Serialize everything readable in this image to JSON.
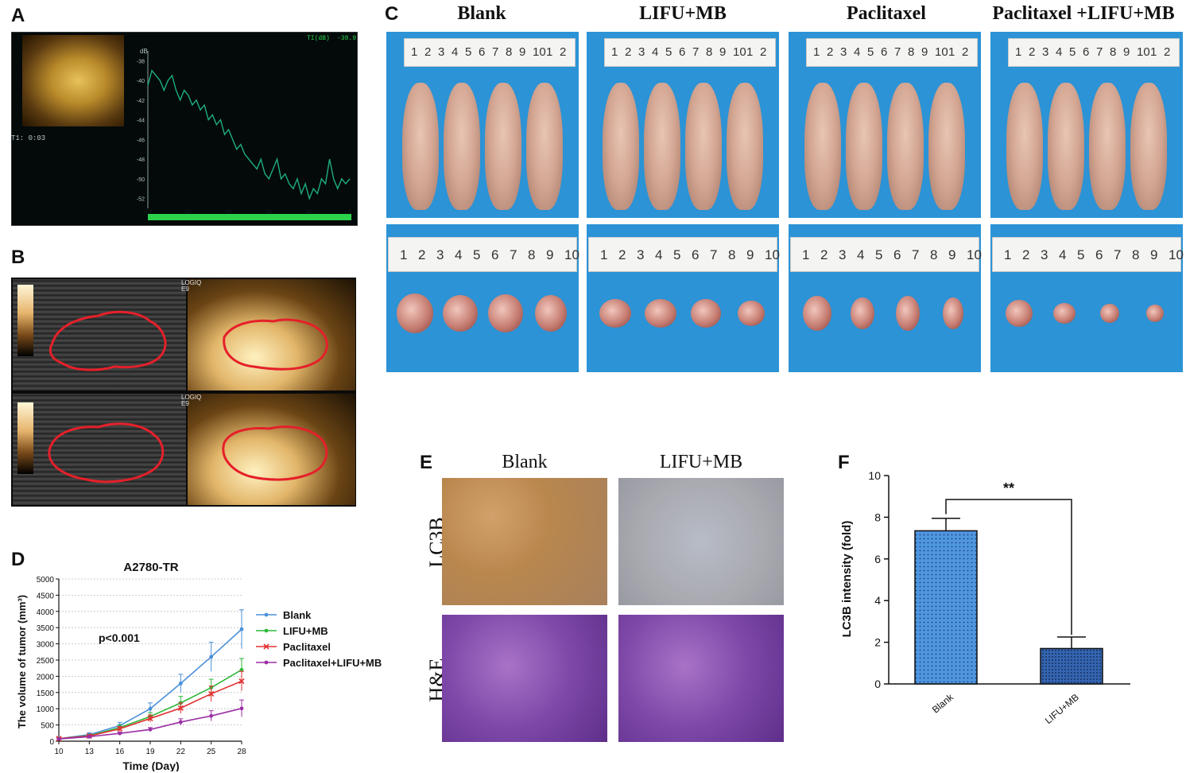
{
  "panel_letters": {
    "a": "A",
    "b": "B",
    "c": "C",
    "d": "D",
    "e": "E",
    "f": "F"
  },
  "panelA": {
    "top_right_label": "TI(dB)",
    "top_right_value": "-38.9",
    "y_unit": "dB",
    "t1_label": "T1: 0:03",
    "chart_data": {
      "type": "line",
      "x_range": [
        0,
        100
      ],
      "x_ticks": [
        "0.0",
        "20",
        "40",
        "60",
        "80",
        "1"
      ],
      "y_range": [
        -53,
        -37
      ],
      "y_ticks": [
        "-38",
        "-40",
        "-42",
        "-44",
        "-46",
        "-48",
        "-50",
        "-52"
      ],
      "series": [
        {
          "color": "#1fae7e",
          "x": [
            0,
            2,
            4,
            6,
            8,
            10,
            12,
            14,
            16,
            18,
            20,
            22,
            24,
            26,
            28,
            30,
            32,
            34,
            36,
            38,
            40,
            42,
            44,
            46,
            48,
            50,
            52,
            54,
            56,
            58,
            60,
            62,
            64,
            66,
            68,
            70,
            72,
            74,
            76,
            78,
            80,
            82,
            84,
            86,
            88,
            90,
            92,
            94,
            96,
            98,
            100
          ],
          "y": [
            -40.5,
            -39,
            -39.5,
            -40,
            -41,
            -40,
            -39.5,
            -41,
            -42,
            -41,
            -41.5,
            -42.5,
            -42,
            -43,
            -42.5,
            -44,
            -43.5,
            -44.5,
            -44,
            -45.5,
            -45,
            -46,
            -47,
            -46.5,
            -47.5,
            -48,
            -48.5,
            -49,
            -48,
            -49.5,
            -50,
            -49,
            -48,
            -50,
            -49.5,
            -50.5,
            -51,
            -50,
            -51.5,
            -50.5,
            -52,
            -51,
            -51.5,
            -50,
            -50.5,
            -48,
            -50,
            -51,
            -50,
            -50.5,
            -50
          ]
        }
      ]
    }
  },
  "panelB": {
    "logiq_label_1": "LOGIQ",
    "logiq_label_2": "E9",
    "outline_color": "#e5202a"
  },
  "panelC": {
    "groups": [
      "Blank",
      "LIFU+MB",
      "Paclitaxel",
      "Paclitaxel +LIFU+MB"
    ],
    "ruler_numbers_top": [
      "1",
      "2",
      "3",
      "4",
      "5",
      "6",
      "7",
      "8",
      "9",
      "10",
      "1",
      "2"
    ],
    "ruler_numbers_bottom": [
      "1",
      "2",
      "3",
      "4",
      "5",
      "6",
      "7",
      "8",
      "9",
      "10"
    ],
    "background_color": "#2b93d6"
  },
  "panelD": {
    "chart_data": {
      "type": "line",
      "title": "A2780-TR",
      "xlabel": "Time (Day)",
      "ylabel": "The volume of tumor (mm³)",
      "x": [
        10,
        13,
        16,
        19,
        22,
        25,
        28
      ],
      "x_ticks": [
        "10",
        "13",
        "16",
        "19",
        "22",
        "25",
        "28"
      ],
      "ylim": [
        0,
        5000
      ],
      "y_ticks": [
        "0",
        "500",
        "1000",
        "1500",
        "2000",
        "2500",
        "3000",
        "3500",
        "4000",
        "4500",
        "5000"
      ],
      "annotation": "p<0.001",
      "series": [
        {
          "name": "Blank",
          "color": "#4a90d9",
          "marker": "dot",
          "values": [
            80,
            200,
            480,
            1000,
            1780,
            2600,
            3450
          ],
          "err": [
            30,
            60,
            100,
            180,
            280,
            450,
            600
          ]
        },
        {
          "name": "LIFU+MB",
          "color": "#2eb83a",
          "marker": "dot",
          "values": [
            80,
            170,
            420,
            760,
            1180,
            1650,
            2200
          ],
          "err": [
            30,
            40,
            80,
            120,
            200,
            260,
            350
          ]
        },
        {
          "name": "Paclitaxel",
          "color": "#e23030",
          "marker": "x",
          "values": [
            80,
            160,
            380,
            700,
            1020,
            1460,
            1850
          ],
          "err": [
            30,
            40,
            70,
            110,
            160,
            240,
            300
          ]
        },
        {
          "name": "Paclitaxel+LIFU+MB",
          "color": "#9b2fa5",
          "marker": "dot",
          "values": [
            70,
            140,
            240,
            360,
            590,
            780,
            1010
          ],
          "err": [
            20,
            30,
            40,
            60,
            100,
            160,
            260
          ]
        }
      ]
    }
  },
  "panelE": {
    "col_headers": [
      "Blank",
      "LIFU+MB"
    ],
    "row_labels": [
      "LC3B",
      "H&E"
    ]
  },
  "panelF": {
    "chart_data": {
      "type": "bar",
      "categories": [
        "Blank",
        "LIFU+MB"
      ],
      "values": [
        7.35,
        1.7
      ],
      "err": [
        0.6,
        0.55
      ],
      "ylabel": "LC3B intensity (fold)",
      "ylim": [
        0,
        10
      ],
      "y_ticks": [
        "0",
        "2",
        "4",
        "6",
        "8",
        "10"
      ],
      "significance": "**",
      "bar_colors": [
        "#4f96e0",
        "#3565b0"
      ]
    }
  }
}
